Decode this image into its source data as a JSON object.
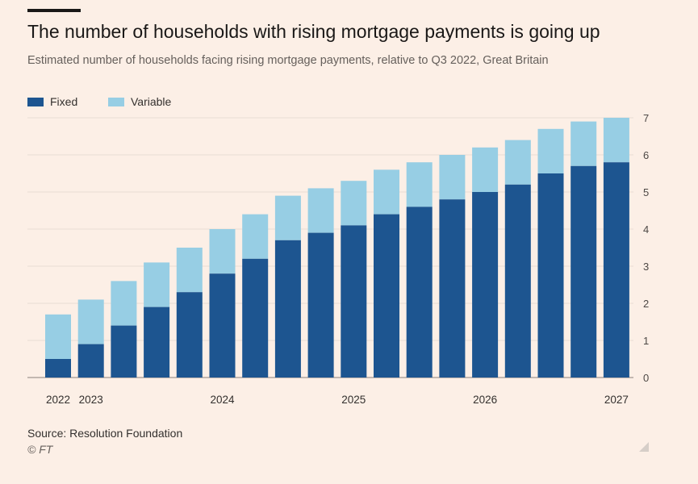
{
  "title": "The number of households with rising mortgage payments is going up",
  "subtitle": "Estimated number of households facing rising mortgage payments, relative to Q3 2022, Great Britain",
  "source": "Source: Resolution Foundation",
  "credit": "© FT",
  "colors": {
    "fixed": "#1d5590",
    "variable": "#97cee4",
    "background": "#fcefe6",
    "grid": "#e7dcd4"
  },
  "chart_data": {
    "type": "bar",
    "stacked": true,
    "x_tick_labels": [
      "2022",
      "2023",
      "2024",
      "2025",
      "2026",
      "2027"
    ],
    "x_tick_positions": [
      0,
      1,
      5,
      9,
      13,
      17
    ],
    "series": [
      {
        "name": "Fixed",
        "values": [
          0.5,
          0.9,
          1.4,
          1.9,
          2.3,
          2.8,
          3.2,
          3.7,
          3.9,
          4.1,
          4.4,
          4.6,
          4.8,
          5.0,
          5.2,
          5.5,
          5.7,
          5.8
        ]
      },
      {
        "name": "Variable",
        "values": [
          1.2,
          1.2,
          1.2,
          1.2,
          1.2,
          1.2,
          1.2,
          1.2,
          1.2,
          1.2,
          1.2,
          1.2,
          1.2,
          1.2,
          1.2,
          1.2,
          1.2,
          1.2
        ]
      }
    ],
    "ylim": [
      0,
      7
    ],
    "yticks": [
      0,
      1,
      2,
      3,
      4,
      5,
      6,
      7
    ],
    "y_axis_position": "right",
    "grid": true,
    "legend_position": "top-left"
  }
}
